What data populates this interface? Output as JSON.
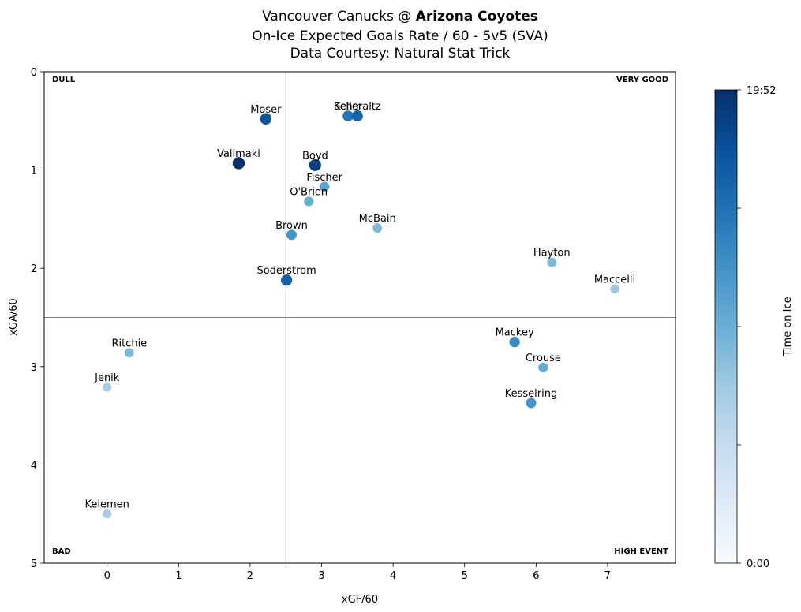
{
  "chart_data": {
    "type": "scatter",
    "title": {
      "line1_prefix": "Vancouver Canucks @ ",
      "line1_bold": "Arizona Coyotes",
      "line2": "On-Ice Expected Goals Rate / 60 - 5v5 (SVA)",
      "line3": "Data Courtesy: Natural Stat Trick"
    },
    "xlabel": "xGF/60",
    "ylabel": "xGA/60",
    "xlim": [
      -0.88,
      7.95
    ],
    "ylim": [
      5,
      0
    ],
    "y_inverted": true,
    "xticks": [
      "0",
      "1",
      "2",
      "3",
      "4",
      "5",
      "6",
      "7"
    ],
    "yticks": [
      "0",
      "1",
      "2",
      "3",
      "4",
      "5"
    ],
    "reference_lines": {
      "x": 2.5,
      "y": 2.5
    },
    "quadrant_labels": {
      "top_left": "DULL",
      "top_right": "VERY GOOD",
      "bottom_left": "BAD",
      "bottom_right": "HIGH EVENT"
    },
    "colorbar": {
      "label": "Time on Ice",
      "min_label": "0:00",
      "max_label": "19:52",
      "colormap": "Blues",
      "colors": [
        "#f7fbff",
        "#deebf7",
        "#c6dbef",
        "#9ecae1",
        "#6baed6",
        "#4292c6",
        "#2171b5",
        "#08519c",
        "#08306b"
      ]
    },
    "points": [
      {
        "name": "Moser",
        "x": 2.22,
        "y": 0.48,
        "toi": 0.86
      },
      {
        "name": "Keller",
        "x": 3.37,
        "y": 0.45,
        "toi": 0.74
      },
      {
        "name": "Schmaltz",
        "x": 3.5,
        "y": 0.45,
        "toi": 0.8
      },
      {
        "name": "Valimaki",
        "x": 1.84,
        "y": 0.93,
        "toi": 1.0
      },
      {
        "name": "Boyd",
        "x": 2.91,
        "y": 0.95,
        "toi": 0.95
      },
      {
        "name": "Fischer",
        "x": 3.04,
        "y": 1.17,
        "toi": 0.55
      },
      {
        "name": "O'Brien",
        "x": 2.82,
        "y": 1.32,
        "toi": 0.5
      },
      {
        "name": "Brown",
        "x": 2.58,
        "y": 1.66,
        "toi": 0.62
      },
      {
        "name": "McBain",
        "x": 3.78,
        "y": 1.59,
        "toi": 0.45
      },
      {
        "name": "Hayton",
        "x": 6.22,
        "y": 1.94,
        "toi": 0.45
      },
      {
        "name": "Maccelli",
        "x": 7.1,
        "y": 2.21,
        "toi": 0.38
      },
      {
        "name": "Soderstrom",
        "x": 2.51,
        "y": 2.12,
        "toi": 0.82
      },
      {
        "name": "Ritchie",
        "x": 0.31,
        "y": 2.86,
        "toi": 0.45
      },
      {
        "name": "Jenik",
        "x": 0.0,
        "y": 3.21,
        "toi": 0.35
      },
      {
        "name": "Mackey",
        "x": 5.7,
        "y": 2.75,
        "toi": 0.66
      },
      {
        "name": "Crouse",
        "x": 6.1,
        "y": 3.01,
        "toi": 0.52
      },
      {
        "name": "Kesselring",
        "x": 5.93,
        "y": 3.37,
        "toi": 0.62
      },
      {
        "name": "Kelemen",
        "x": 0.0,
        "y": 4.5,
        "toi": 0.35
      }
    ]
  }
}
